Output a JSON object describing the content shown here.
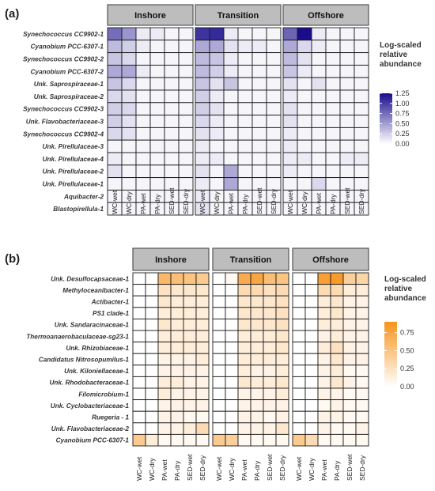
{
  "chart_data": [
    {
      "type": "heatmap",
      "panel_tag": "(a)",
      "facets": [
        "Inshore",
        "Transition",
        "Offshore"
      ],
      "columns": [
        "WC-wet",
        "WC-dry",
        "PA-wet",
        "PA-dry",
        "SED-wet",
        "SED-dry"
      ],
      "rows": [
        "Synechococcus CC9902-1",
        "Cyanobium PCC-6307-1",
        "Synechococcus CC9902-2",
        "Cyanobium PCC-6307-2",
        "Unk. Saprospiraceae-1",
        "Unk. Saprospiraceae-2",
        "Synechococcus CC9902-3",
        "Unk. Flavobacteriaceae-3",
        "Synechococcus CC9902-4",
        "Unk. Pirellulaceae-3",
        "Unk. Pirellulaceae-4",
        "Unk. Pirellulaceae-2",
        "Unk. Pirellulaceae-1",
        "Aquibacter-2",
        "Blastopirellula-1"
      ],
      "values": [
        [
          [
            0.75,
            0.55,
            0.1,
            0.1,
            0.05,
            0.05
          ],
          [
            1.05,
            1.1,
            0.1,
            0.05,
            0.05,
            0.05
          ],
          [
            0.8,
            1.25,
            0.1,
            0.05,
            0.05,
            0.05
          ]
        ],
        [
          [
            0.35,
            0.25,
            0.1,
            0.05,
            0.05,
            0.05
          ],
          [
            0.45,
            0.45,
            0.15,
            0.1,
            0.1,
            0.05
          ],
          [
            0.45,
            0.2,
            0.1,
            0.05,
            0.05,
            0.05
          ]
        ],
        [
          [
            0.3,
            0.2,
            0.05,
            0.05,
            0.05,
            0.05
          ],
          [
            0.35,
            0.3,
            0.1,
            0.05,
            0.05,
            0.05
          ],
          [
            0.35,
            0.15,
            0.05,
            0.05,
            0.05,
            0.05
          ]
        ],
        [
          [
            0.45,
            0.45,
            0.1,
            0.05,
            0.05,
            0.05
          ],
          [
            0.35,
            0.25,
            0.1,
            0.05,
            0.05,
            0.05
          ],
          [
            0.3,
            0.1,
            0.05,
            0.05,
            0.05,
            0.05
          ]
        ],
        [
          [
            0.3,
            0.2,
            0.05,
            0.05,
            0.05,
            0.05
          ],
          [
            0.3,
            0.15,
            0.3,
            0.05,
            0.05,
            0.05
          ],
          [
            0.15,
            0.05,
            0.15,
            0.05,
            0.05,
            0.05
          ]
        ],
        [
          [
            0.2,
            0.15,
            0.05,
            0.05,
            0.05,
            0.05
          ],
          [
            0.25,
            0.1,
            0.05,
            0.05,
            0.05,
            0.05
          ],
          [
            0.1,
            0.05,
            0.05,
            0.05,
            0.05,
            0.05
          ]
        ],
        [
          [
            0.25,
            0.2,
            0.05,
            0.05,
            0.05,
            0.05
          ],
          [
            0.25,
            0.15,
            0.05,
            0.05,
            0.05,
            0.05
          ],
          [
            0.15,
            0.05,
            0.05,
            0.05,
            0.05,
            0.05
          ]
        ],
        [
          [
            0.25,
            0.15,
            0.05,
            0.05,
            0.05,
            0.05
          ],
          [
            0.2,
            0.1,
            0.05,
            0.05,
            0.05,
            0.05
          ],
          [
            0.15,
            0.05,
            0.05,
            0.05,
            0.05,
            0.05
          ]
        ],
        [
          [
            0.2,
            0.15,
            0.05,
            0.05,
            0.05,
            0.05
          ],
          [
            0.15,
            0.1,
            0.05,
            0.05,
            0.05,
            0.05
          ],
          [
            0.1,
            0.05,
            0.05,
            0.05,
            0.05,
            0.05
          ]
        ],
        [
          [
            0.05,
            0.05,
            0.05,
            0.05,
            0.05,
            0.05
          ],
          [
            0.1,
            0.05,
            0.05,
            0.05,
            0.05,
            0.05
          ],
          [
            0.1,
            0.05,
            0.05,
            0.05,
            0.05,
            0.05
          ]
        ],
        [
          [
            0.1,
            0.05,
            0.05,
            0.05,
            0.05,
            0.05
          ],
          [
            0.1,
            0.1,
            0.05,
            0.05,
            0.05,
            0.05
          ],
          [
            0.1,
            0.1,
            0.05,
            0.05,
            0.1,
            0.1
          ]
        ],
        [
          [
            0.15,
            0.05,
            0.05,
            0.05,
            0.05,
            0.05
          ],
          [
            0.15,
            0.05,
            0.45,
            0.05,
            0.05,
            0.05
          ],
          [
            0.1,
            0.05,
            0.05,
            0.05,
            0.05,
            0.05
          ]
        ],
        [
          [
            0.05,
            0.05,
            0.05,
            0.05,
            0.05,
            0.05
          ],
          [
            0.1,
            0.05,
            0.45,
            0.05,
            0.05,
            0.05
          ],
          [
            0.05,
            0.05,
            0.2,
            0.05,
            0.05,
            0.05
          ]
        ],
        [
          [
            0.05,
            0.05,
            0.05,
            0.05,
            0.05,
            0.05
          ],
          [
            0.1,
            0.05,
            0.05,
            0.05,
            0.05,
            0.05
          ],
          [
            0.05,
            0.05,
            0.05,
            0.05,
            0.05,
            0.05
          ]
        ],
        [
          [
            0.05,
            0.05,
            0.05,
            0.05,
            0.05,
            0.05
          ],
          [
            0.15,
            0.05,
            0.05,
            0.05,
            0.05,
            0.05
          ],
          [
            0.05,
            0.05,
            0.05,
            0.05,
            0.05,
            0.05
          ]
        ]
      ],
      "legend": {
        "title_lines": [
          "Log-scaled",
          "relative",
          "abundance"
        ],
        "ticks": [
          0.0,
          0.25,
          0.5,
          0.75,
          1.0,
          1.25
        ],
        "tick_labels": [
          "0.00",
          "0.25",
          "0.50",
          "0.75",
          "1.00",
          "1.25"
        ],
        "range": [
          0,
          1.25
        ],
        "color_low": "#ffffff",
        "color_high": "#1a0d8c",
        "placement": "right"
      }
    },
    {
      "type": "heatmap",
      "panel_tag": "(b)",
      "facets": [
        "Inshore",
        "Transition",
        "Offshore"
      ],
      "columns": [
        "WC-wet",
        "WC-dry",
        "PA-wet",
        "PA-dry",
        "SED-wet",
        "SED-dry"
      ],
      "rows": [
        "Unk. Desulfocapsaceae-1",
        "Methyloceanibacter-1",
        "Actibacter-1",
        "PS1 clade-1",
        "Unk. Sandaracinaceae-1",
        "Thermoanaerobaculaceae-sg23-1",
        "Unk. Rhizobiaceae-1",
        "Candidatus Nitrosopumilus-1",
        "Unk. Kiloniellaceae-1",
        "Unk. Rhodobacteraceae-1",
        "Filomicrobium-1",
        "Unk. Cyclobacteriaceae-1",
        "Ruegeria - 1",
        "Unk. Flavobacteriaceae-2",
        "Cyanobium PCC-6307-1"
      ],
      "values": [
        [
          [
            0.0,
            0.0,
            0.6,
            0.55,
            0.5,
            0.45
          ],
          [
            0.0,
            0.05,
            0.7,
            0.75,
            0.55,
            0.5
          ],
          [
            0.0,
            0.0,
            0.8,
            0.85,
            0.4,
            0.35
          ]
        ],
        [
          [
            0.0,
            0.0,
            0.25,
            0.2,
            0.2,
            0.2
          ],
          [
            0.0,
            0.0,
            0.3,
            0.3,
            0.25,
            0.3
          ],
          [
            0.0,
            0.0,
            0.3,
            0.3,
            0.15,
            0.15
          ]
        ],
        [
          [
            0.0,
            0.0,
            0.2,
            0.15,
            0.15,
            0.15
          ],
          [
            0.0,
            0.0,
            0.2,
            0.2,
            0.2,
            0.25
          ],
          [
            0.0,
            0.0,
            0.15,
            0.2,
            0.1,
            0.1
          ]
        ],
        [
          [
            0.0,
            0.0,
            0.15,
            0.15,
            0.15,
            0.15
          ],
          [
            0.0,
            0.0,
            0.2,
            0.2,
            0.2,
            0.25
          ],
          [
            0.0,
            0.0,
            0.15,
            0.2,
            0.1,
            0.1
          ]
        ],
        [
          [
            0.0,
            0.0,
            0.2,
            0.15,
            0.15,
            0.15
          ],
          [
            0.0,
            0.0,
            0.2,
            0.2,
            0.2,
            0.25
          ],
          [
            0.0,
            0.0,
            0.15,
            0.15,
            0.1,
            0.1
          ]
        ],
        [
          [
            0.0,
            0.0,
            0.15,
            0.15,
            0.15,
            0.15
          ],
          [
            0.0,
            0.0,
            0.15,
            0.15,
            0.15,
            0.2
          ],
          [
            0.0,
            0.0,
            0.1,
            0.15,
            0.1,
            0.1
          ]
        ],
        [
          [
            0.0,
            0.0,
            0.15,
            0.15,
            0.15,
            0.15
          ],
          [
            0.0,
            0.0,
            0.15,
            0.15,
            0.15,
            0.2
          ],
          [
            0.0,
            0.0,
            0.15,
            0.25,
            0.1,
            0.1
          ]
        ],
        [
          [
            0.0,
            0.0,
            0.1,
            0.1,
            0.1,
            0.15
          ],
          [
            0.0,
            0.0,
            0.15,
            0.15,
            0.15,
            0.15
          ],
          [
            0.0,
            0.0,
            0.1,
            0.2,
            0.1,
            0.1
          ]
        ],
        [
          [
            0.0,
            0.0,
            0.1,
            0.1,
            0.1,
            0.1
          ],
          [
            0.0,
            0.0,
            0.15,
            0.1,
            0.1,
            0.15
          ],
          [
            0.0,
            0.0,
            0.1,
            0.15,
            0.05,
            0.05
          ]
        ],
        [
          [
            0.0,
            0.0,
            0.15,
            0.15,
            0.1,
            0.1
          ],
          [
            0.0,
            0.0,
            0.2,
            0.15,
            0.15,
            0.2
          ],
          [
            0.0,
            0.0,
            0.1,
            0.2,
            0.1,
            0.05
          ]
        ],
        [
          [
            0.0,
            0.0,
            0.15,
            0.1,
            0.1,
            0.1
          ],
          [
            0.0,
            0.0,
            0.1,
            0.1,
            0.1,
            0.15
          ],
          [
            0.0,
            0.0,
            0.1,
            0.1,
            0.05,
            0.05
          ]
        ],
        [
          [
            0.0,
            0.0,
            0.1,
            0.1,
            0.1,
            0.1
          ],
          [
            0.0,
            0.0,
            0.1,
            0.1,
            0.1,
            0.1
          ],
          [
            0.0,
            0.0,
            0.05,
            0.1,
            0.05,
            0.05
          ]
        ],
        [
          [
            0.0,
            0.0,
            0.1,
            0.1,
            0.05,
            0.05
          ],
          [
            0.0,
            0.0,
            0.1,
            0.1,
            0.05,
            0.1
          ],
          [
            0.0,
            0.0,
            0.1,
            0.1,
            0.05,
            0.05
          ]
        ],
        [
          [
            0.0,
            0.0,
            0.1,
            0.1,
            0.15,
            0.3
          ],
          [
            0.0,
            0.0,
            0.1,
            0.1,
            0.1,
            0.2
          ],
          [
            0.0,
            0.0,
            0.1,
            0.05,
            0.05,
            0.1
          ]
        ],
        [
          [
            0.45,
            0.15,
            0.05,
            0.05,
            0.05,
            0.05
          ],
          [
            0.45,
            0.4,
            0.05,
            0.05,
            0.05,
            0.05
          ],
          [
            0.45,
            0.3,
            0.05,
            0.05,
            0.05,
            0.05
          ]
        ]
      ],
      "legend": {
        "title_lines": [
          "Log-scaled",
          "relative",
          "abundance"
        ],
        "ticks": [
          0.0,
          0.25,
          0.5,
          0.75
        ],
        "tick_labels": [
          "0.00",
          "0.25",
          "0.50",
          "0.75"
        ],
        "range": [
          0,
          0.9
        ],
        "color_low": "#ffffff",
        "color_high": "#f7941d",
        "placement": "right"
      }
    }
  ],
  "colors": {
    "strip_fill": "#bdbdbd",
    "strip_border": "#555555",
    "grid_line": "#1a1a1a"
  }
}
